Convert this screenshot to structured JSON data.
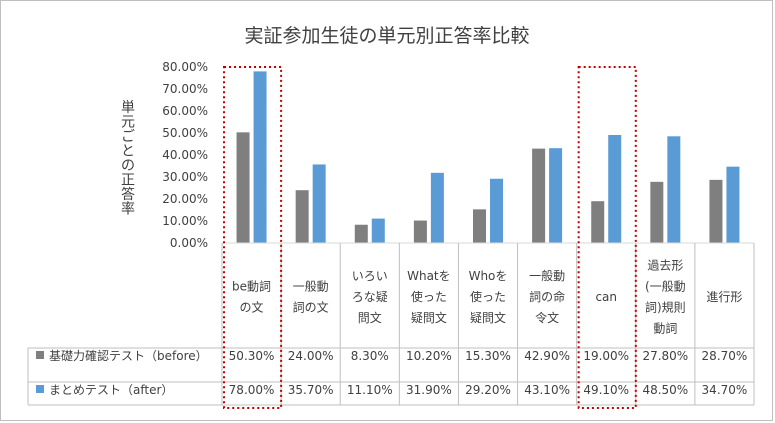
{
  "chart_data": {
    "type": "bar",
    "title": "実証参加生徒の単元別正答率比較",
    "ylabel": "単元ごとの正答率",
    "ylim": [
      0,
      0.8
    ],
    "yticks": [
      "0.00%",
      "10.00%",
      "20.00%",
      "30.00%",
      "40.00%",
      "50.00%",
      "60.00%",
      "70.00%",
      "80.00%"
    ],
    "categories": [
      [
        "be動詞",
        "の文"
      ],
      [
        "一般動",
        "詞の文"
      ],
      [
        "いろい",
        "ろな疑",
        "問文"
      ],
      [
        "Whatを",
        "使った",
        "疑問文"
      ],
      [
        "Whoを",
        "使った",
        "疑問文"
      ],
      [
        "一般動",
        "詞の命",
        "令文"
      ],
      [
        "can"
      ],
      [
        "過去形",
        "(一般動",
        "詞)規則",
        "動詞"
      ],
      [
        "進行形"
      ]
    ],
    "series": [
      {
        "name": "基礎力確認テスト（before）",
        "color": "#7f7f7f",
        "values": [
          0.503,
          0.24,
          0.083,
          0.102,
          0.153,
          0.429,
          0.19,
          0.278,
          0.287
        ],
        "labels": [
          "50.30%",
          "24.00%",
          "8.30%",
          "10.20%",
          "15.30%",
          "42.90%",
          "19.00%",
          "27.80%",
          "28.70%"
        ]
      },
      {
        "name": "まとめテスト（after）",
        "color": "#5b9bd5",
        "values": [
          0.78,
          0.357,
          0.111,
          0.319,
          0.292,
          0.431,
          0.491,
          0.485,
          0.347
        ],
        "labels": [
          "78.00%",
          "35.70%",
          "11.10%",
          "31.90%",
          "29.20%",
          "43.10%",
          "49.10%",
          "48.50%",
          "34.70%"
        ]
      }
    ],
    "highlighted_categories": [
      0,
      6
    ],
    "highlight_color": "#c00000",
    "grid": false,
    "data_table": true
  }
}
